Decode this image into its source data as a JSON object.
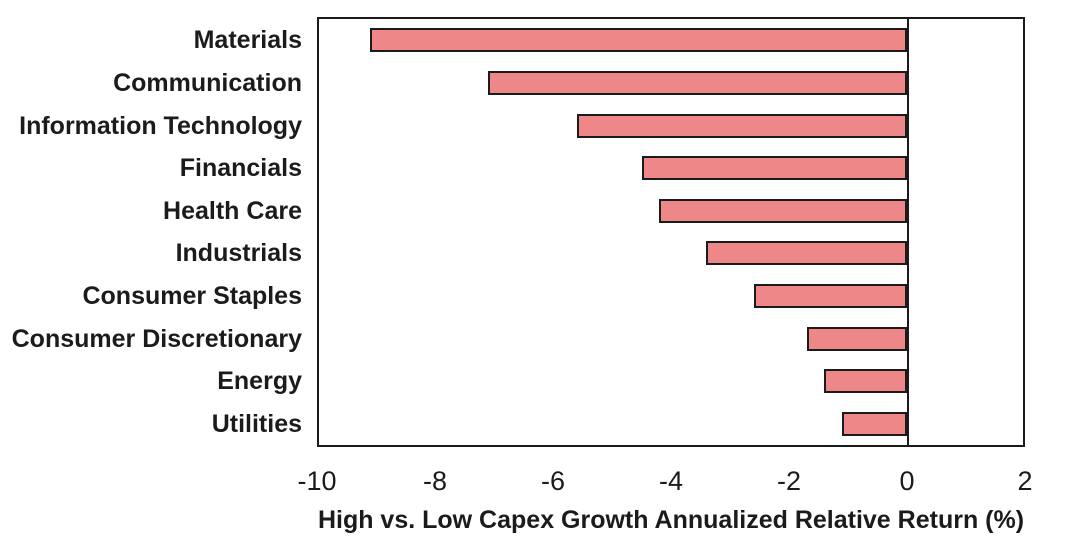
{
  "chart_data": {
    "type": "bar",
    "orientation": "horizontal",
    "title": "",
    "xlabel": "High vs. Low Capex Growth Annualized Relative Return (%)",
    "ylabel": "",
    "categories": [
      "Materials",
      "Communication",
      "Information Technology",
      "Financials",
      "Health Care",
      "Industrials",
      "Consumer Staples",
      "Consumer Discretionary",
      "Energy",
      "Utilities"
    ],
    "values": [
      -9.1,
      -7.1,
      -5.6,
      -4.5,
      -4.2,
      -3.4,
      -2.6,
      -1.7,
      -1.4,
      -1.1
    ],
    "xlim": [
      -10,
      2
    ],
    "xticks": [
      -10,
      -8,
      -6,
      -4,
      -2,
      0,
      2
    ],
    "grid": false,
    "legend": false,
    "zero_line": true,
    "bar_color": "#ee8787",
    "bar_border_color": "#1b1b1b",
    "axis_color": "#1b1b1b",
    "text_color": "#1b1b1b",
    "background_color": "#ffffff"
  }
}
